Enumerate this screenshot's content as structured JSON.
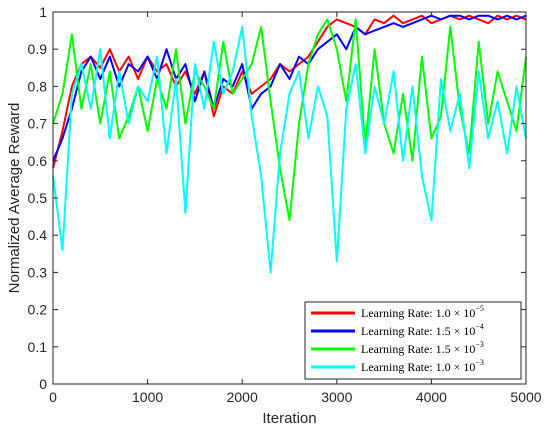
{
  "chart_data": {
    "type": "line",
    "title": "",
    "xlabel": "Iteration",
    "ylabel": "Normalized Average Reward",
    "xlim": [
      0,
      5000
    ],
    "ylim": [
      0,
      1
    ],
    "x_ticks": [
      0,
      1000,
      2000,
      3000,
      4000,
      5000
    ],
    "x_tick_labels": [
      "0",
      "1000",
      "2000",
      "3000",
      "4000",
      "5000"
    ],
    "y_ticks": [
      0,
      0.1,
      0.2,
      0.3,
      0.4,
      0.5,
      0.6,
      0.7,
      0.8,
      0.9,
      1
    ],
    "y_tick_labels": [
      "0",
      "0.1",
      "0.2",
      "0.3",
      "0.4",
      "0.5",
      "0.6",
      "0.7",
      "0.8",
      "0.9",
      "1"
    ],
    "grid": false,
    "legend_position": "bottom-right",
    "series": [
      {
        "name": "Learning Rate: 1.0 × 10^-5",
        "legend_base": "Learning Rate: 1.0 × 10",
        "legend_exp": "−5",
        "color": "#ff0000",
        "x": [
          0,
          100,
          200,
          300,
          400,
          500,
          600,
          700,
          800,
          900,
          1000,
          1100,
          1200,
          1300,
          1400,
          1500,
          1600,
          1700,
          1800,
          1900,
          2000,
          2100,
          2200,
          2300,
          2400,
          2500,
          2600,
          2700,
          2800,
          2900,
          3000,
          3100,
          3200,
          3300,
          3400,
          3500,
          3600,
          3700,
          3800,
          3900,
          4000,
          4100,
          4200,
          4300,
          4400,
          4500,
          4600,
          4700,
          4800,
          4900,
          5000
        ],
        "values": [
          0.58,
          0.68,
          0.8,
          0.86,
          0.88,
          0.85,
          0.9,
          0.84,
          0.88,
          0.82,
          0.88,
          0.84,
          0.86,
          0.8,
          0.84,
          0.78,
          0.84,
          0.72,
          0.8,
          0.78,
          0.84,
          0.78,
          0.8,
          0.82,
          0.86,
          0.84,
          0.86,
          0.88,
          0.92,
          0.96,
          0.98,
          0.97,
          0.96,
          0.94,
          0.98,
          0.97,
          0.99,
          0.97,
          0.98,
          0.99,
          0.97,
          0.98,
          0.99,
          0.98,
          0.99,
          0.98,
          0.97,
          0.99,
          0.98,
          0.99,
          0.98
        ]
      },
      {
        "name": "Learning Rate: 1.5 × 10^-4",
        "legend_base": "Learning Rate: 1.5 × 10",
        "legend_exp": "−4",
        "color": "#0000ff",
        "x": [
          0,
          100,
          200,
          300,
          400,
          500,
          600,
          700,
          800,
          900,
          1000,
          1100,
          1200,
          1300,
          1400,
          1500,
          1600,
          1700,
          1800,
          1900,
          2000,
          2100,
          2200,
          2300,
          2400,
          2500,
          2600,
          2700,
          2800,
          2900,
          3000,
          3100,
          3200,
          3300,
          3400,
          3500,
          3600,
          3700,
          3800,
          3900,
          4000,
          4100,
          4200,
          4300,
          4400,
          4500,
          4600,
          4700,
          4800,
          4900,
          5000
        ],
        "values": [
          0.6,
          0.66,
          0.74,
          0.84,
          0.88,
          0.82,
          0.88,
          0.8,
          0.86,
          0.84,
          0.88,
          0.82,
          0.9,
          0.82,
          0.86,
          0.76,
          0.84,
          0.74,
          0.82,
          0.8,
          0.86,
          0.74,
          0.78,
          0.8,
          0.86,
          0.82,
          0.88,
          0.86,
          0.9,
          0.92,
          0.94,
          0.9,
          0.96,
          0.94,
          0.95,
          0.96,
          0.97,
          0.96,
          0.97,
          0.98,
          0.99,
          0.98,
          0.99,
          0.99,
          0.98,
          0.99,
          0.99,
          0.98,
          0.99,
          0.98,
          0.99
        ]
      },
      {
        "name": "Learning Rate: 1.5 × 10^-3",
        "legend_base": "Learning Rate: 1.5 × 10",
        "legend_exp": "−3",
        "color": "#00ff00",
        "x": [
          0,
          100,
          200,
          300,
          400,
          500,
          600,
          700,
          800,
          900,
          1000,
          1100,
          1200,
          1300,
          1400,
          1500,
          1600,
          1700,
          1800,
          1900,
          2000,
          2100,
          2200,
          2300,
          2400,
          2500,
          2600,
          2700,
          2800,
          2900,
          3000,
          3100,
          3200,
          3300,
          3400,
          3500,
          3600,
          3700,
          3800,
          3900,
          4000,
          4100,
          4200,
          4300,
          4400,
          4500,
          4600,
          4700,
          4800,
          4900,
          5000
        ],
        "values": [
          0.7,
          0.78,
          0.94,
          0.74,
          0.86,
          0.7,
          0.84,
          0.66,
          0.72,
          0.8,
          0.68,
          0.82,
          0.74,
          0.9,
          0.7,
          0.84,
          0.8,
          0.74,
          0.92,
          0.78,
          0.82,
          0.86,
          0.96,
          0.76,
          0.58,
          0.44,
          0.7,
          0.86,
          0.94,
          0.98,
          0.9,
          0.76,
          0.98,
          0.64,
          0.9,
          0.7,
          0.62,
          0.78,
          0.6,
          0.88,
          0.66,
          0.72,
          0.96,
          0.74,
          0.62,
          0.92,
          0.7,
          0.84,
          0.76,
          0.68,
          0.88
        ]
      },
      {
        "name": "Learning Rate: 1.0 × 10^-3",
        "legend_base": "Learning Rate: 1.0 × 10",
        "legend_exp": "−3",
        "color": "#00ffff",
        "x": [
          0,
          100,
          200,
          300,
          400,
          500,
          600,
          700,
          800,
          900,
          1000,
          1100,
          1200,
          1300,
          1400,
          1500,
          1600,
          1700,
          1800,
          1900,
          2000,
          2100,
          2200,
          2300,
          2400,
          2500,
          2600,
          2700,
          2800,
          2900,
          3000,
          3100,
          3200,
          3300,
          3400,
          3500,
          3600,
          3700,
          3800,
          3900,
          4000,
          4100,
          4200,
          4300,
          4400,
          4500,
          4600,
          4700,
          4800,
          4900,
          5000
        ],
        "values": [
          0.56,
          0.36,
          0.78,
          0.86,
          0.74,
          0.9,
          0.66,
          0.84,
          0.7,
          0.8,
          0.76,
          0.88,
          0.62,
          0.82,
          0.46,
          0.86,
          0.74,
          0.92,
          0.78,
          0.84,
          0.96,
          0.72,
          0.56,
          0.3,
          0.62,
          0.78,
          0.84,
          0.66,
          0.8,
          0.72,
          0.33,
          0.74,
          0.86,
          0.62,
          0.8,
          0.7,
          0.84,
          0.6,
          0.8,
          0.56,
          0.44,
          0.82,
          0.68,
          0.78,
          0.58,
          0.84,
          0.66,
          0.76,
          0.62,
          0.8,
          0.66
        ]
      }
    ]
  }
}
